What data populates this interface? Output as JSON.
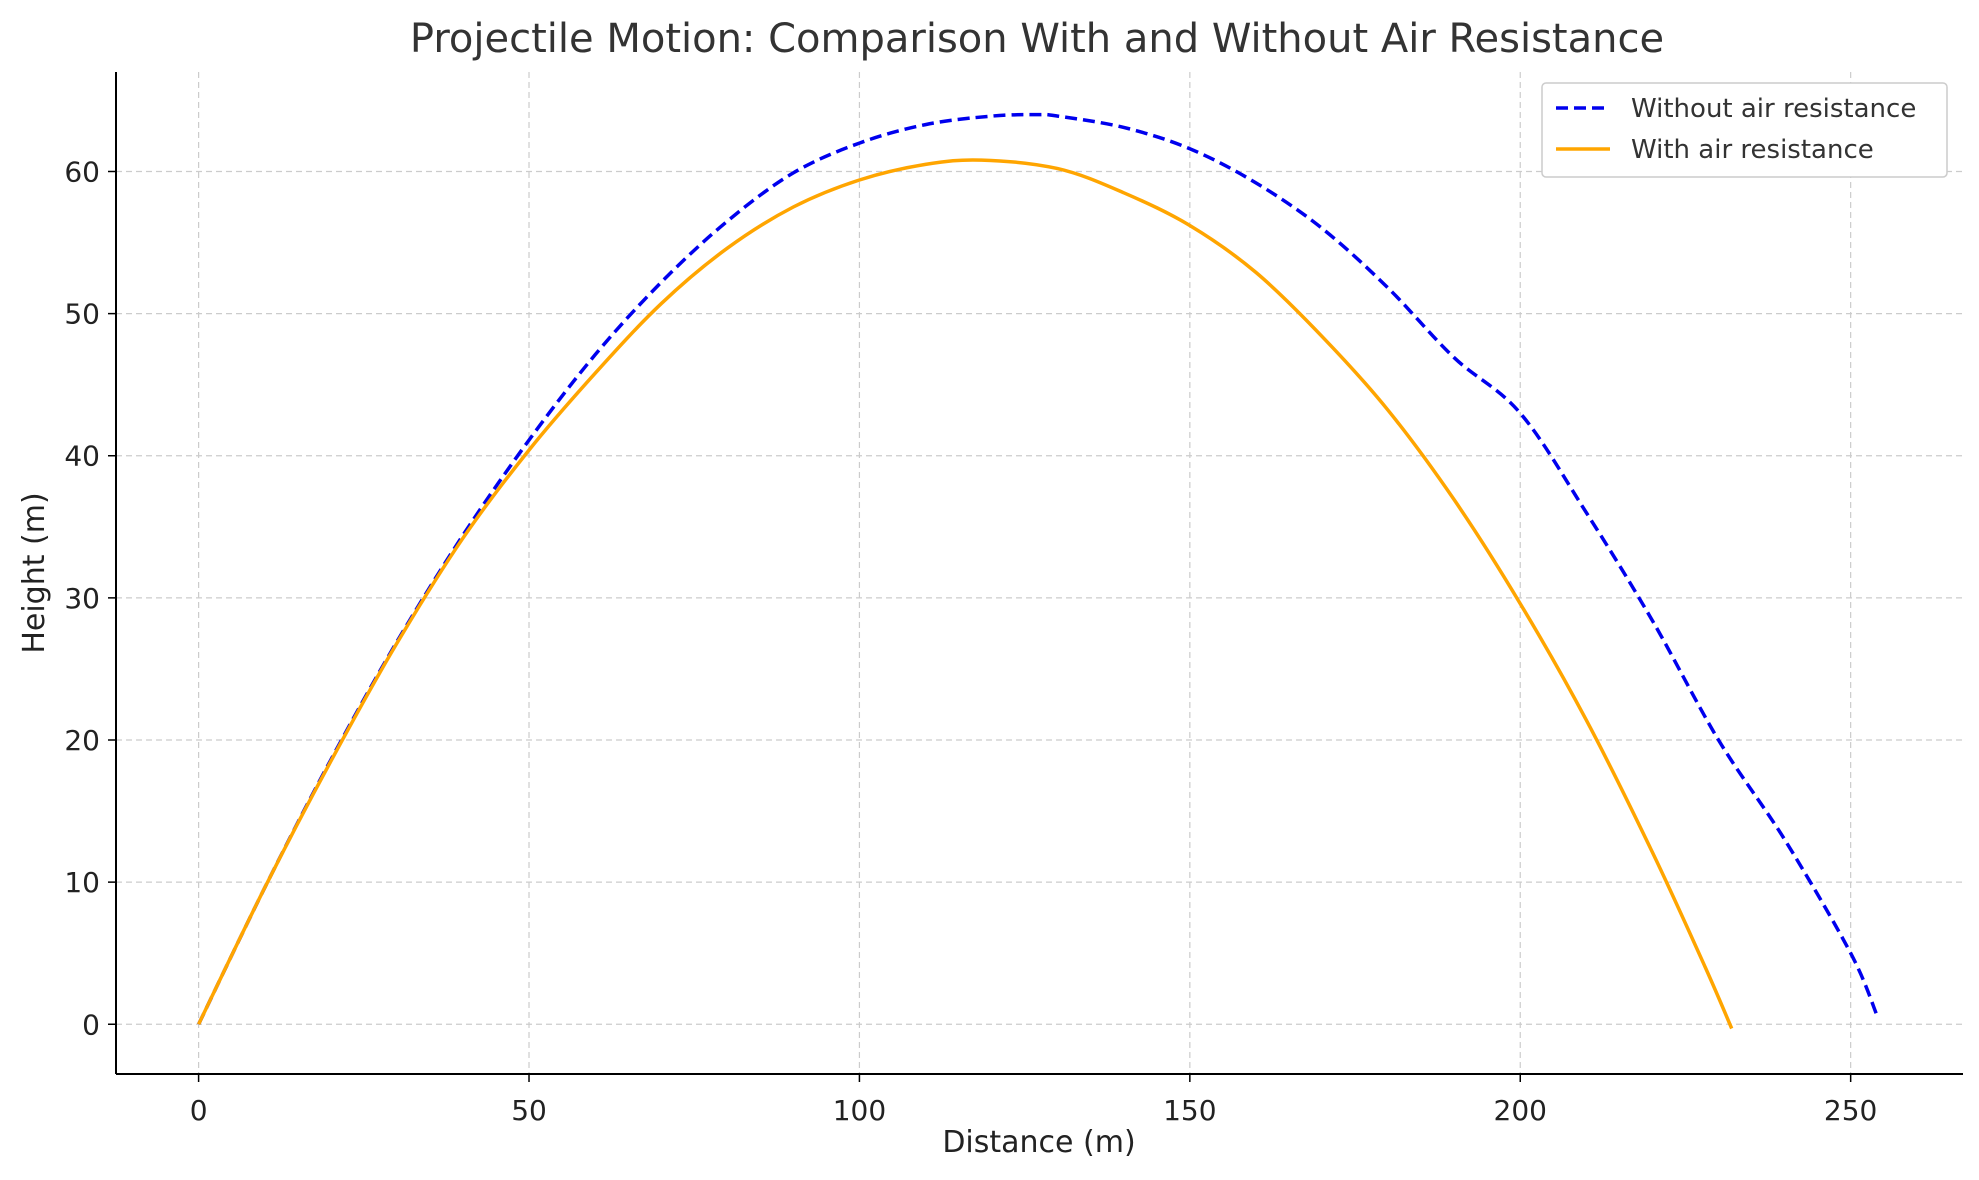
{
  "chart_data": {
    "type": "line",
    "title": "Projectile Motion: Comparison With and Without Air Resistance",
    "xlabel": "Distance (m)",
    "ylabel": "Height (m)",
    "xlim": [
      -12.5,
      267
    ],
    "ylim": [
      -3.5,
      67
    ],
    "xticks": [
      0,
      50,
      100,
      150,
      200,
      250
    ],
    "yticks": [
      0,
      10,
      20,
      30,
      40,
      50,
      60
    ],
    "grid": true,
    "legend_position": "top-right",
    "series": [
      {
        "name": "Without air resistance",
        "color": "#0000ee",
        "style": "dashed",
        "points": [
          [
            0,
            0
          ],
          [
            10,
            9.6
          ],
          [
            20,
            18.6
          ],
          [
            30,
            26.9
          ],
          [
            40,
            34.4
          ],
          [
            50,
            41.1
          ],
          [
            60,
            47.1
          ],
          [
            70,
            52.2
          ],
          [
            80,
            56.5
          ],
          [
            90,
            59.9
          ],
          [
            100,
            62.0
          ],
          [
            110,
            63.3
          ],
          [
            120,
            63.9
          ],
          [
            127,
            64.0
          ],
          [
            130,
            63.9
          ],
          [
            140,
            63.1
          ],
          [
            150,
            61.6
          ],
          [
            160,
            59.2
          ],
          [
            170,
            56.0
          ],
          [
            180,
            51.8
          ],
          [
            190,
            46.9
          ],
          [
            200,
            43.0
          ],
          [
            210,
            36.0
          ],
          [
            220,
            28.4
          ],
          [
            230,
            20.0
          ],
          [
            240,
            13.0
          ],
          [
            250,
            5.0
          ],
          [
            254,
            0.6
          ]
        ]
      },
      {
        "name": "With air resistance",
        "color": "#ffa500",
        "style": "solid",
        "points": [
          [
            0,
            0
          ],
          [
            10,
            9.6
          ],
          [
            20,
            18.5
          ],
          [
            30,
            26.8
          ],
          [
            40,
            34.2
          ],
          [
            50,
            40.4
          ],
          [
            60,
            45.8
          ],
          [
            70,
            50.7
          ],
          [
            80,
            54.6
          ],
          [
            90,
            57.5
          ],
          [
            100,
            59.4
          ],
          [
            110,
            60.5
          ],
          [
            118.5,
            60.8
          ],
          [
            130,
            60.2
          ],
          [
            140,
            58.5
          ],
          [
            150,
            56.2
          ],
          [
            160,
            52.9
          ],
          [
            170,
            48.4
          ],
          [
            180,
            43.2
          ],
          [
            190,
            36.9
          ],
          [
            200,
            29.6
          ],
          [
            210,
            21.4
          ],
          [
            220,
            12.1
          ],
          [
            228,
            4.0
          ],
          [
            232,
            -0.3
          ]
        ]
      }
    ]
  }
}
